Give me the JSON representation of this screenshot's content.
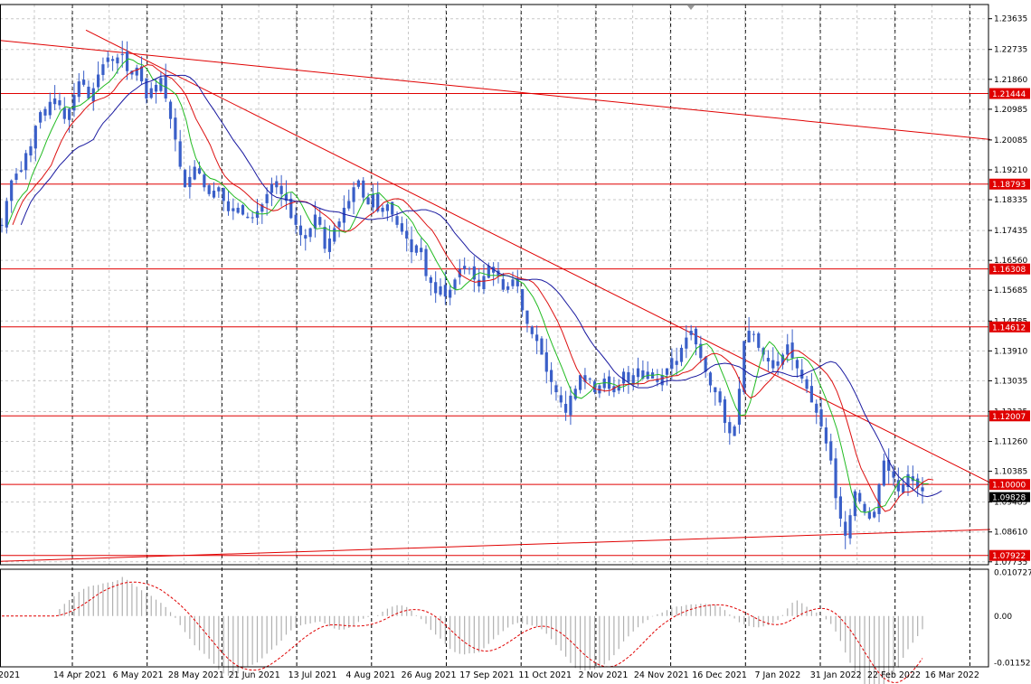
{
  "chart_data": {
    "type": "candlestick",
    "symbol_context": "daily price chart with moving averages and oscillator",
    "y_range": [
      1.0765,
      1.2405
    ],
    "y_ticks": [
      "1.23635",
      "1.22735",
      "1.21860",
      "1.20985",
      "1.20085",
      "1.19210",
      "1.18335",
      "1.17435",
      "1.16560",
      "1.15685",
      "1.14785",
      "1.13910",
      "1.13035",
      "1.12135",
      "1.11260",
      "1.10385",
      "1.09485",
      "1.08610",
      "1.07735"
    ],
    "x_tick_labels": [
      "2021",
      "14 Apr 2021",
      "6 May 2021",
      "28 May 2021",
      "21 Jun 2021",
      "13 Jul 2021",
      "4 Aug 2021",
      "26 Aug 2021",
      "17 Sep 2021",
      "11 Oct 2021",
      "2 Nov 2021",
      "24 Nov 2021",
      "16 Dec 2021",
      "7 Jan 2022",
      "31 Jan 2022",
      "22 Feb 2022",
      "16 Mar 2022"
    ],
    "levels": [
      {
        "label": "1.21444",
        "value": 1.21444
      },
      {
        "label": "1.18793",
        "value": 1.18793
      },
      {
        "label": "1.16308",
        "value": 1.16308
      },
      {
        "label": "1.14612",
        "value": 1.14612
      },
      {
        "label": "1.12007",
        "value": 1.12007
      },
      {
        "label": "1.10000",
        "value": 1.1
      },
      {
        "label": "1.07922",
        "value": 1.07922
      }
    ],
    "current_price": "1.09828",
    "oscillator": {
      "ticks": [
        "0.010727",
        "0.00",
        "-0.011525"
      ],
      "range": [
        -0.0125,
        0.0115
      ]
    },
    "colors": {
      "candle": "#3a5fc8",
      "line": "#e00000",
      "ma_fast": "#22bb22",
      "ma_mid": "#dd1111",
      "ma_slow": "#1a1aa0",
      "grid": "#c8c8c8",
      "label_bg": "#e00000",
      "current_bg": "#000000"
    },
    "close_series": [
      1.176,
      1.183,
      1.189,
      1.191,
      1.192,
      1.197,
      1.199,
      1.205,
      1.209,
      1.208,
      1.212,
      1.213,
      1.211,
      1.207,
      1.21,
      1.214,
      1.218,
      1.217,
      1.213,
      1.216,
      1.22,
      1.223,
      1.225,
      1.224,
      1.225,
      1.226,
      1.221,
      1.22,
      1.222,
      1.218,
      1.213,
      1.216,
      1.215,
      1.219,
      1.213,
      1.207,
      1.201,
      1.193,
      1.187,
      1.19,
      1.193,
      1.191,
      1.187,
      1.185,
      1.186,
      1.187,
      1.183,
      1.18,
      1.18,
      1.181,
      1.179,
      1.178,
      1.178,
      1.18,
      1.182,
      1.185,
      1.188,
      1.187,
      1.185,
      1.183,
      1.178,
      1.176,
      1.173,
      1.172,
      1.175,
      1.179,
      1.176,
      1.169,
      1.172,
      1.175,
      1.177,
      1.181,
      1.183,
      1.187,
      1.189,
      1.184,
      1.182,
      1.185,
      1.18,
      1.181,
      1.182,
      1.179,
      1.176,
      1.174,
      1.172,
      1.168,
      1.17,
      1.168,
      1.161,
      1.159,
      1.156,
      1.158,
      1.155,
      1.157,
      1.16,
      1.163,
      1.164,
      1.163,
      1.16,
      1.158,
      1.161,
      1.164,
      1.162,
      1.161,
      1.157,
      1.158,
      1.16,
      1.158,
      1.151,
      1.147,
      1.144,
      1.142,
      1.138,
      1.133,
      1.13,
      1.127,
      1.124,
      1.121,
      1.126,
      1.128,
      1.132,
      1.13,
      1.131,
      1.127,
      1.129,
      1.131,
      1.128,
      1.127,
      1.129,
      1.133,
      1.13,
      1.132,
      1.134,
      1.131,
      1.133,
      1.131,
      1.13,
      1.132,
      1.134,
      1.137,
      1.135,
      1.14,
      1.143,
      1.145,
      1.141,
      1.137,
      1.133,
      1.129,
      1.127,
      1.124,
      1.118,
      1.115,
      1.117,
      1.128,
      1.142,
      1.145,
      1.144,
      1.14,
      1.138,
      1.136,
      1.134,
      1.136,
      1.138,
      1.141,
      1.137,
      1.134,
      1.131,
      1.128,
      1.124,
      1.121,
      1.117,
      1.112,
      1.107,
      1.096,
      1.09,
      1.085,
      1.091,
      1.098,
      1.095,
      1.092,
      1.09,
      1.092,
      1.1,
      1.107,
      1.104,
      1.102,
      1.098,
      1.1,
      1.103,
      1.101,
      1.099,
      1.098
    ],
    "trendlines": [
      {
        "name": "upper-channel",
        "from": [
          0,
          1.23
        ],
        "to": [
          1095,
          1.201
        ]
      },
      {
        "name": "down-trend",
        "from": [
          95,
          1.233
        ],
        "to": [
          1095,
          1.1005
        ]
      },
      {
        "name": "support",
        "from": [
          0,
          1.0775
        ],
        "to": [
          1095,
          1.0868
        ]
      }
    ]
  }
}
